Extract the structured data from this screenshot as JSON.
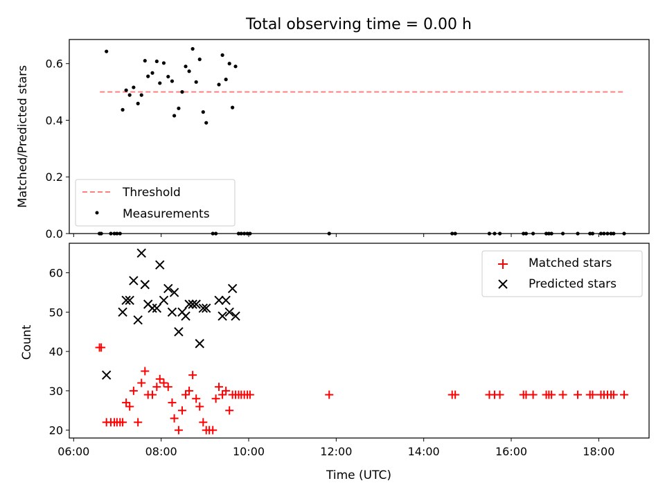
{
  "figure": {
    "title": "Total observing time = 0.00 h"
  },
  "colors": {
    "threshold": "#ff7f7f",
    "measurements": "#000000",
    "matched": "#ff0000",
    "predicted": "#000000"
  },
  "chart_data": [
    {
      "type": "scatter",
      "ylabel": "Matched/Predicted stars",
      "xlim": [
        5.9,
        19.15
      ],
      "ylim": [
        0.0,
        0.685
      ],
      "yticks": [
        0.0,
        0.2,
        0.4,
        0.6
      ],
      "ytick_labels": [
        "0.0",
        "0.2",
        "0.4",
        "0.6"
      ],
      "xtick_labels_visible": false,
      "threshold": {
        "name": "Threshold",
        "y": 0.5,
        "x_range": [
          6.6,
          18.55
        ]
      },
      "legend": {
        "location": "lower-left",
        "entries": [
          "Threshold",
          "Measurements"
        ]
      },
      "series": [
        {
          "name": "Measurements",
          "x": [
            6.59,
            6.63,
            6.75,
            6.85,
            6.93,
            6.99,
            7.06,
            7.12,
            7.2,
            7.28,
            7.37,
            7.47,
            7.55,
            7.63,
            7.7,
            7.8,
            7.9,
            7.97,
            8.06,
            8.16,
            8.25,
            8.3,
            8.4,
            8.48,
            8.56,
            8.64,
            8.72,
            8.8,
            8.88,
            8.96,
            9.03,
            9.18,
            9.25,
            9.32,
            9.4,
            9.48,
            9.56,
            9.63,
            9.7,
            9.77,
            9.83,
            9.9,
            9.97,
            10.03,
            11.84,
            14.65,
            14.72,
            15.5,
            15.62,
            15.74,
            16.28,
            16.34,
            16.5,
            16.8,
            16.86,
            16.92,
            17.18,
            17.52,
            17.8,
            17.86,
            18.05,
            18.12,
            18.2,
            18.28,
            18.34,
            18.58
          ],
          "y": [
            0.0,
            0.0,
            0.643,
            0.0,
            0.0,
            0.0,
            0.0,
            0.437,
            0.506,
            0.489,
            0.516,
            0.459,
            0.489,
            0.61,
            0.555,
            0.567,
            0.608,
            0.531,
            0.602,
            0.554,
            0.538,
            0.416,
            0.442,
            0.5,
            0.59,
            0.573,
            0.652,
            0.535,
            0.615,
            0.429,
            0.391,
            0.0,
            0.0,
            0.526,
            0.63,
            0.544,
            0.6,
            0.445,
            0.59,
            0.0,
            0.0,
            0.0,
            0.0,
            0.0,
            0.0,
            0.0,
            0.0,
            0.0,
            0.0,
            0.0,
            0.0,
            0.0,
            0.0,
            0.0,
            0.0,
            0.0,
            0.0,
            0.0,
            0.0,
            0.0,
            0.0,
            0.0,
            0.0,
            0.0,
            0.0,
            0.0
          ]
        }
      ]
    },
    {
      "type": "scatter",
      "xlabel": "Time (UTC)",
      "ylabel": "Count",
      "xlim": [
        5.9,
        19.15
      ],
      "ylim": [
        18,
        67.5
      ],
      "xticks": [
        6,
        8,
        10,
        12,
        14,
        16,
        18
      ],
      "xtick_labels": [
        "06:00",
        "08:00",
        "10:00",
        "12:00",
        "14:00",
        "16:00",
        "18:00"
      ],
      "yticks": [
        20,
        30,
        40,
        50,
        60
      ],
      "ytick_labels": [
        "20",
        "30",
        "40",
        "50",
        "60"
      ],
      "legend": {
        "location": "upper-right",
        "entries": [
          "Matched stars",
          "Predicted stars"
        ]
      },
      "series": [
        {
          "name": "Matched stars",
          "marker": "+",
          "x": [
            6.59,
            6.63,
            6.75,
            6.85,
            6.93,
            6.99,
            7.06,
            7.12,
            7.2,
            7.28,
            7.37,
            7.47,
            7.55,
            7.63,
            7.7,
            7.8,
            7.9,
            7.97,
            8.06,
            8.16,
            8.25,
            8.3,
            8.4,
            8.48,
            8.56,
            8.64,
            8.72,
            8.8,
            8.88,
            8.96,
            9.03,
            9.1,
            9.18,
            9.25,
            9.32,
            9.4,
            9.48,
            9.56,
            9.63,
            9.7,
            9.77,
            9.83,
            9.9,
            9.97,
            10.03,
            11.84,
            14.65,
            14.72,
            15.5,
            15.62,
            15.74,
            16.28,
            16.34,
            16.5,
            16.8,
            16.86,
            16.92,
            17.18,
            17.52,
            17.8,
            17.86,
            18.05,
            18.12,
            18.2,
            18.28,
            18.34,
            18.58
          ],
          "y": [
            41,
            41,
            22,
            22,
            22,
            22,
            22,
            22,
            27,
            26,
            30,
            22,
            32,
            35,
            29,
            29,
            31,
            33,
            32,
            31,
            27,
            23,
            20,
            25,
            29,
            30,
            34,
            28,
            26,
            22,
            20,
            20,
            20,
            28,
            31,
            29,
            30,
            25,
            29,
            29,
            29,
            29,
            29,
            29,
            29,
            29,
            29,
            29,
            29,
            29,
            29,
            29,
            29,
            29,
            29,
            29,
            29,
            29,
            29,
            29,
            29,
            29,
            29,
            29,
            29,
            29,
            29
          ]
        },
        {
          "name": "Predicted stars",
          "marker": "x",
          "x": [
            6.75,
            7.12,
            7.2,
            7.28,
            7.37,
            7.47,
            7.55,
            7.63,
            7.7,
            7.8,
            7.9,
            7.97,
            8.06,
            8.16,
            8.25,
            8.3,
            8.4,
            8.48,
            8.56,
            8.64,
            8.72,
            8.8,
            8.88,
            8.96,
            9.03,
            9.32,
            9.4,
            9.48,
            9.56,
            9.63,
            9.7
          ],
          "y": [
            34,
            50,
            53,
            53,
            58,
            48,
            65,
            57,
            52,
            51,
            51,
            62,
            53,
            56,
            50,
            55,
            45,
            50,
            49,
            52,
            52,
            52,
            42,
            51,
            51,
            53,
            49,
            53,
            50,
            56,
            49
          ]
        }
      ]
    }
  ]
}
